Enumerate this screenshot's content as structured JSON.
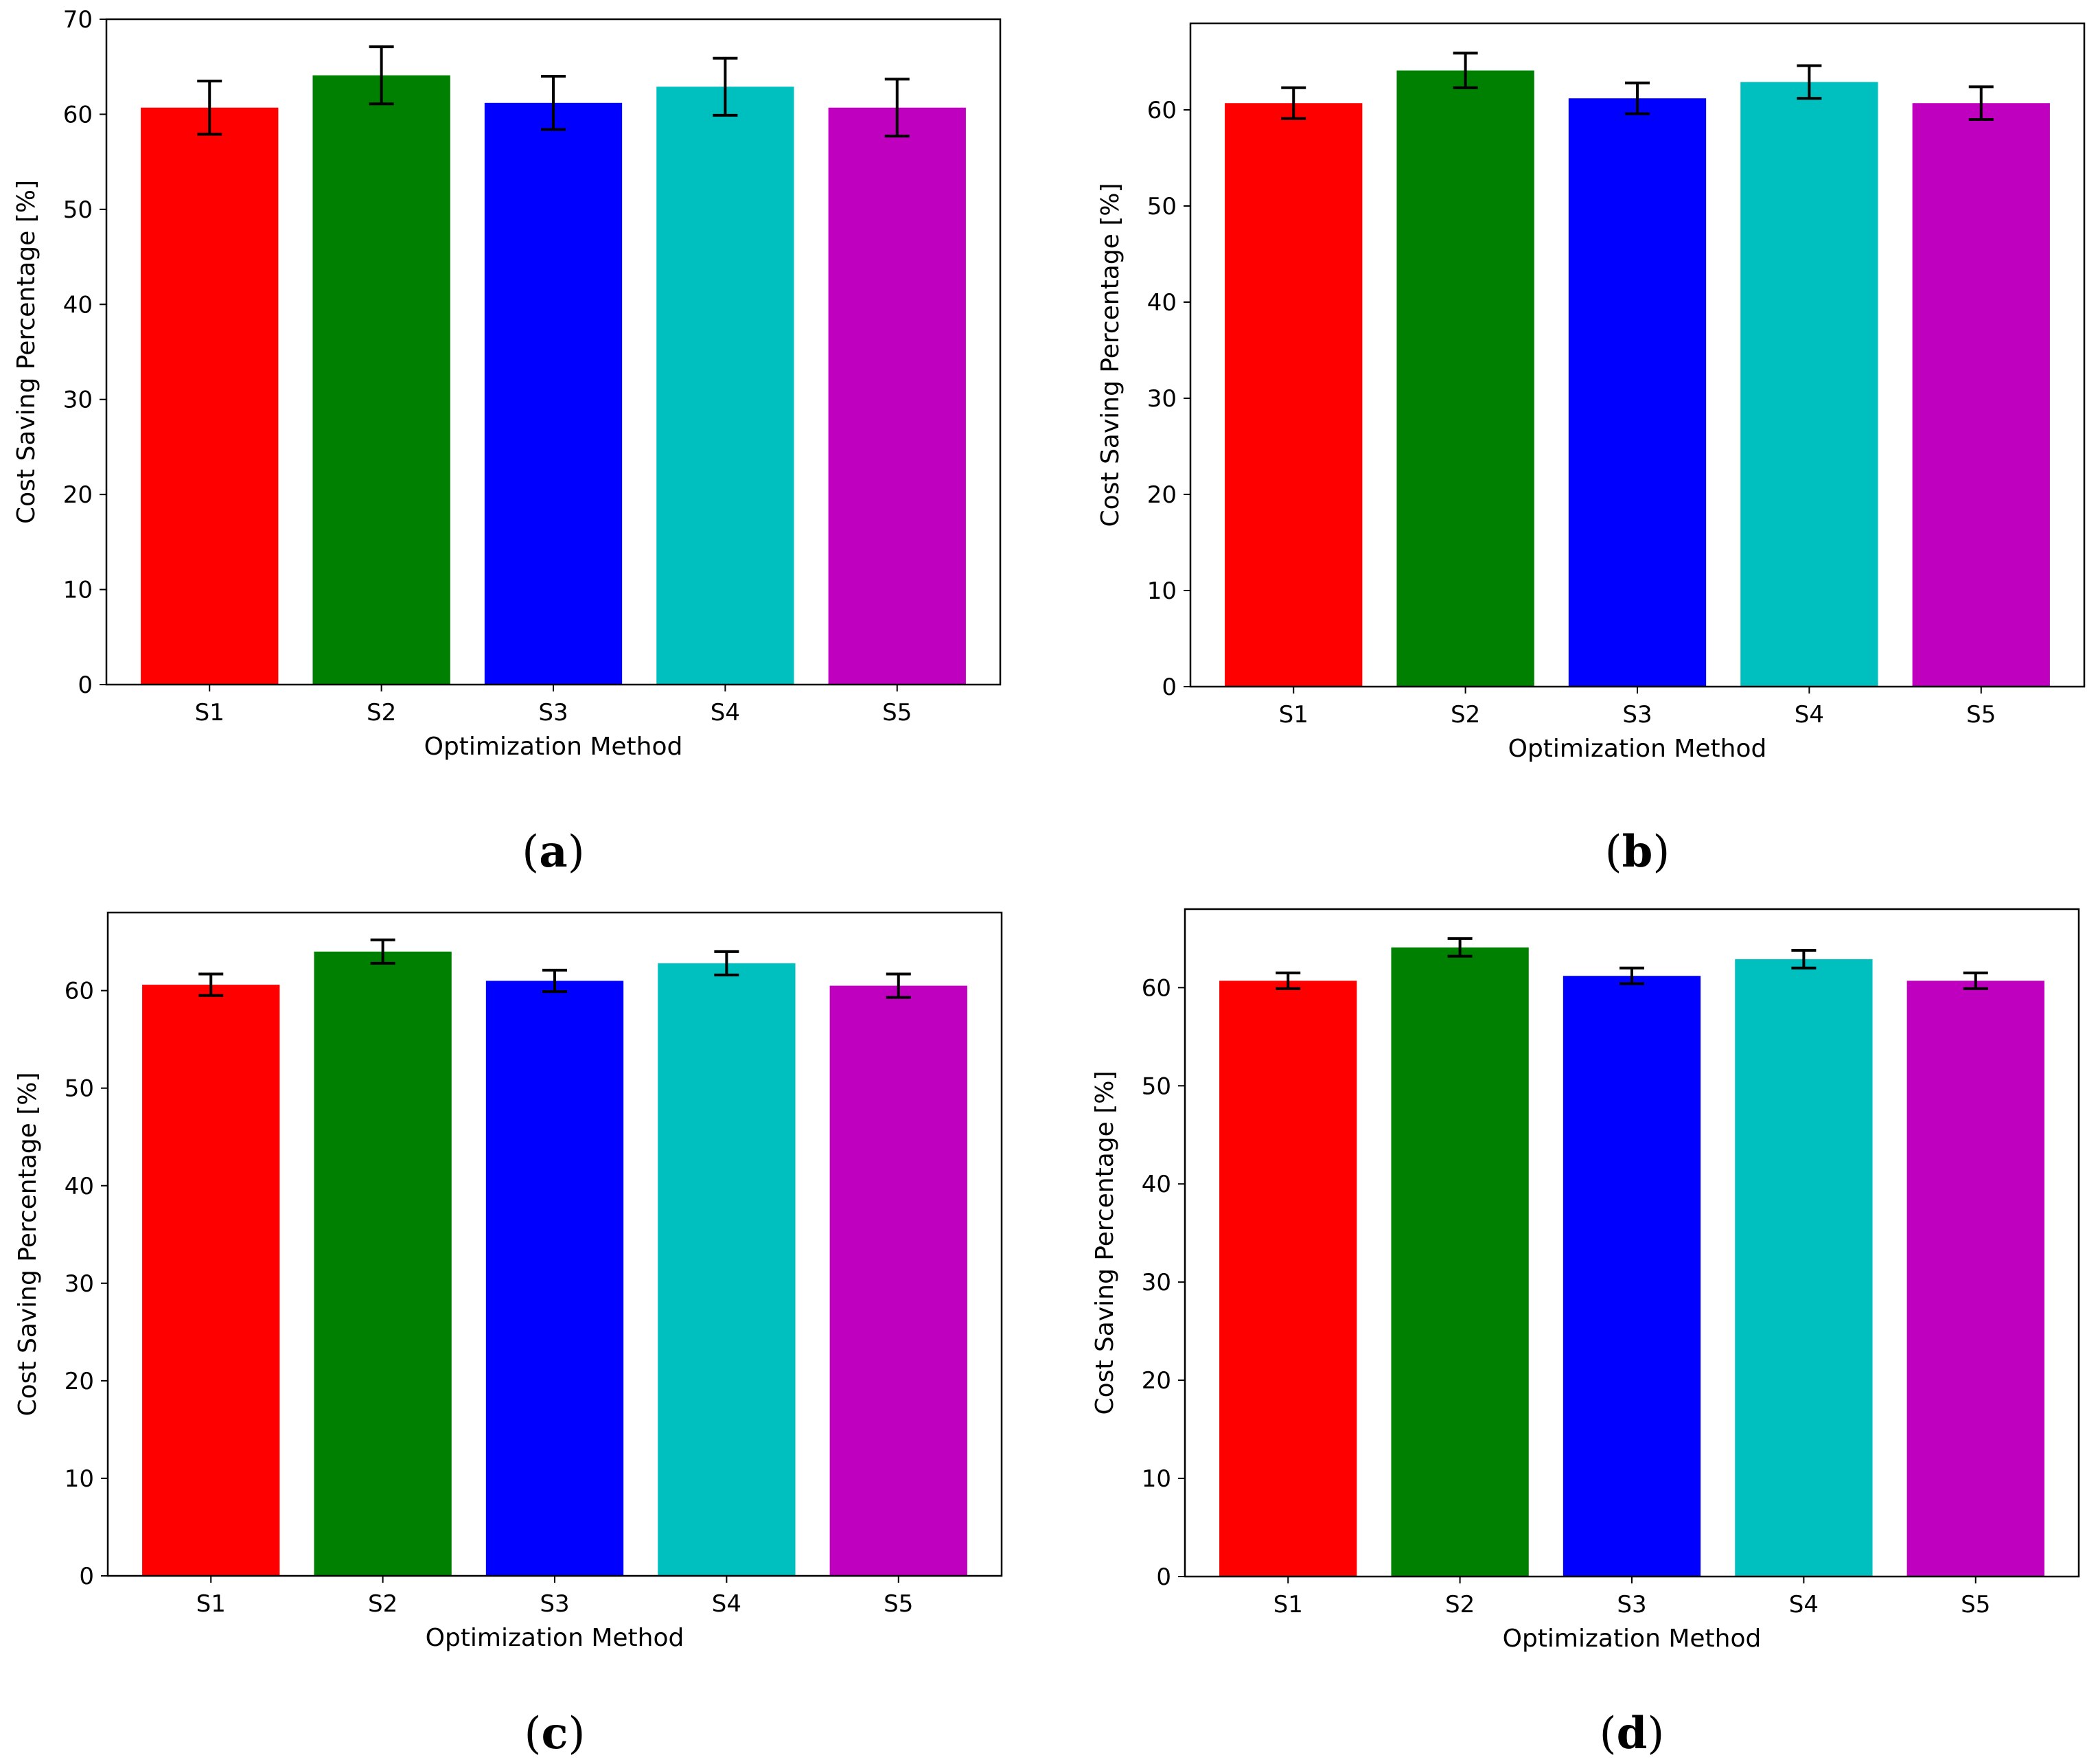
{
  "chart_data": [
    {
      "type": "bar",
      "panel_label": "a",
      "categories": [
        "S1",
        "S2",
        "S3",
        "S4",
        "S5"
      ],
      "values": [
        60.7,
        64.1,
        61.2,
        62.9,
        60.7
      ],
      "errors": [
        2.8,
        3.0,
        2.8,
        3.0,
        3.0
      ],
      "colors": [
        "#ff0000",
        "#008000",
        "#0000ff",
        "#00bfbf",
        "#bf00bf"
      ],
      "xlabel": "Optimization Method",
      "ylabel": "Cost Saving Percentage [%]",
      "ylim": [
        0,
        70
      ],
      "yticks": [
        0,
        10,
        20,
        30,
        40,
        50,
        60,
        70
      ],
      "grid": false
    },
    {
      "type": "bar",
      "panel_label": "b",
      "categories": [
        "S1",
        "S2",
        "S3",
        "S4",
        "S5"
      ],
      "values": [
        60.7,
        64.1,
        61.2,
        62.9,
        60.7
      ],
      "errors": [
        1.6,
        1.8,
        1.6,
        1.7,
        1.7
      ],
      "colors": [
        "#ff0000",
        "#008000",
        "#0000ff",
        "#00bfbf",
        "#bf00bf"
      ],
      "xlabel": "Optimization Method",
      "ylabel": "Cost Saving Percentage [%]",
      "ylim": [
        0,
        69
      ],
      "yticks": [
        0,
        10,
        20,
        30,
        40,
        50,
        60
      ],
      "grid": false
    },
    {
      "type": "bar",
      "panel_label": "c",
      "categories": [
        "S1",
        "S2",
        "S3",
        "S4",
        "S5"
      ],
      "values": [
        60.6,
        64.0,
        61.0,
        62.8,
        60.5
      ],
      "errors": [
        1.1,
        1.2,
        1.1,
        1.2,
        1.2
      ],
      "colors": [
        "#ff0000",
        "#008000",
        "#0000ff",
        "#00bfbf",
        "#bf00bf"
      ],
      "xlabel": "Optimization Method",
      "ylabel": "Cost Saving Percentage [%]",
      "ylim": [
        0,
        68
      ],
      "yticks": [
        0,
        10,
        20,
        30,
        40,
        50,
        60
      ],
      "grid": false
    },
    {
      "type": "bar",
      "panel_label": "d",
      "categories": [
        "S1",
        "S2",
        "S3",
        "S4",
        "S5"
      ],
      "values": [
        60.7,
        64.1,
        61.2,
        62.9,
        60.7
      ],
      "errors": [
        0.8,
        0.9,
        0.8,
        0.9,
        0.8
      ],
      "colors": [
        "#ff0000",
        "#008000",
        "#0000ff",
        "#00bfbf",
        "#bf00bf"
      ],
      "xlabel": "Optimization Method",
      "ylabel": "Cost Saving Percentage [%]",
      "ylim": [
        0,
        68
      ],
      "yticks": [
        0,
        10,
        20,
        30,
        40,
        50,
        60
      ],
      "grid": false
    }
  ]
}
